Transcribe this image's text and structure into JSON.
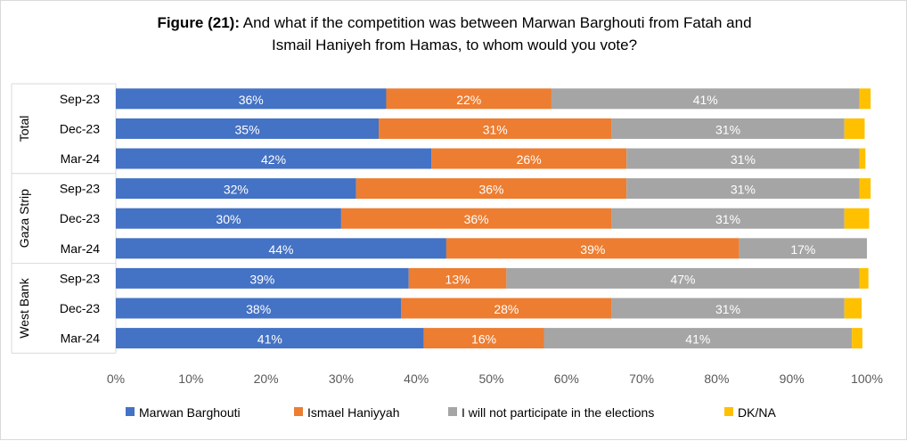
{
  "chart_data": {
    "type": "bar",
    "orientation": "horizontal",
    "stacked": true,
    "title_prefix": "Figure (21):",
    "title_line1": " And what if the competition was between Marwan Barghouti from Fatah and",
    "title_line2": "Ismail Haniyeh from Hamas, to whom would you vote?",
    "groups": [
      {
        "name": "Total",
        "categories": [
          "Sep-23",
          "Dec-23",
          "Mar-24"
        ]
      },
      {
        "name": "Gaza Strip",
        "categories": [
          "Sep-23",
          "Dec-23",
          "Mar-24"
        ]
      },
      {
        "name": "West Bank",
        "categories": [
          "Sep-23",
          "Dec-23",
          "Mar-24"
        ]
      }
    ],
    "series": [
      {
        "name": "Marwan Barghouti",
        "color": "#4472C4",
        "values": [
          36,
          35,
          42,
          32,
          30,
          44,
          39,
          38,
          41
        ],
        "labels": [
          "36%",
          "35%",
          "42%",
          "32%",
          "30%",
          "44%",
          "39%",
          "38%",
          "41%"
        ]
      },
      {
        "name": "Ismael Haniyyah",
        "color": "#ED7D31",
        "values": [
          22,
          31,
          26,
          36,
          36,
          39,
          13,
          28,
          16
        ],
        "labels": [
          "22%",
          "31%",
          "26%",
          "36%",
          "36%",
          "39%",
          "13%",
          "28%",
          "16%"
        ]
      },
      {
        "name": "I will not participate in the elections",
        "color": "#A5A5A5",
        "values": [
          41,
          31,
          31,
          31,
          31,
          17,
          47,
          31,
          41
        ],
        "labels": [
          "41%",
          "31%",
          "31%",
          "31%",
          "31%",
          "17%",
          "47%",
          "31%",
          "41%"
        ]
      },
      {
        "name": "DK/NA",
        "color": "#FFC000",
        "values": [
          1.5,
          2.7,
          0.8,
          1.5,
          3.3,
          0,
          1.2,
          2.3,
          1.4
        ],
        "labels": [
          "",
          "",
          "",
          "",
          "",
          "",
          "",
          "",
          ""
        ]
      }
    ],
    "xlim": [
      0,
      100
    ],
    "xticks": [
      "0%",
      "10%",
      "20%",
      "30%",
      "40%",
      "50%",
      "60%",
      "70%",
      "80%",
      "90%",
      "100%"
    ],
    "grid": false,
    "legend_position": "bottom"
  }
}
